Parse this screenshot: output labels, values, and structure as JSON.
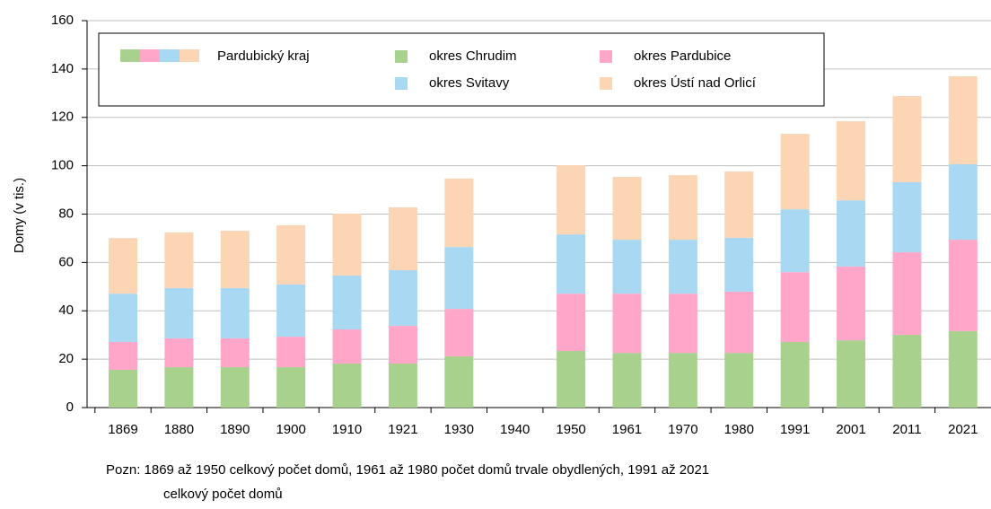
{
  "chart_data": {
    "type": "stacked_bar",
    "y_label": "Domy (v tis.)",
    "legend_group_label": "Pardubický kraj",
    "categories": [
      "1869",
      "1880",
      "1890",
      "1900",
      "1910",
      "1921",
      "1930",
      "1940",
      "1950",
      "1961",
      "1970",
      "1980",
      "1991",
      "2001",
      "2011",
      "2021"
    ],
    "series": [
      {
        "name": "okres Chrudim",
        "color": "#a9d18e",
        "values": [
          15.6,
          16.7,
          16.7,
          16.7,
          18.2,
          18.2,
          21.2,
          null,
          23.4,
          22.6,
          22.6,
          22.6,
          27.1,
          27.8,
          30.1,
          31.6
        ]
      },
      {
        "name": "okres Pardubice",
        "color": "#ffa6c9",
        "values": [
          11.5,
          11.9,
          11.9,
          12.6,
          14.1,
          15.6,
          19.6,
          null,
          23.7,
          24.5,
          24.5,
          25.3,
          28.9,
          30.5,
          34.1,
          37.8
        ]
      },
      {
        "name": "okres Svitavy",
        "color": "#a9d8f2",
        "values": [
          20,
          20.8,
          20.8,
          21.6,
          22.3,
          23,
          25.6,
          null,
          24.5,
          22.3,
          22.3,
          22.3,
          26,
          27.4,
          29,
          31.2
        ]
      },
      {
        "name": "okres Ústí nad Orlicí",
        "color": "#fcd5b5",
        "values": [
          23,
          23,
          23.7,
          24.5,
          25.6,
          26,
          28.3,
          null,
          28.6,
          26,
          26.7,
          27.4,
          31.2,
          32.7,
          35.6,
          36.4
        ]
      }
    ],
    "ylim": [
      0,
      160
    ],
    "yticks": [
      0,
      20,
      40,
      60,
      80,
      100,
      120,
      140,
      160
    ],
    "grid": true,
    "note": [
      "Pozn: 1869 až 1950 celkový počet domů, 1961 až 1980 počet domů trvale obydlených, 1991 až 2021",
      "celkový počet domů"
    ]
  }
}
